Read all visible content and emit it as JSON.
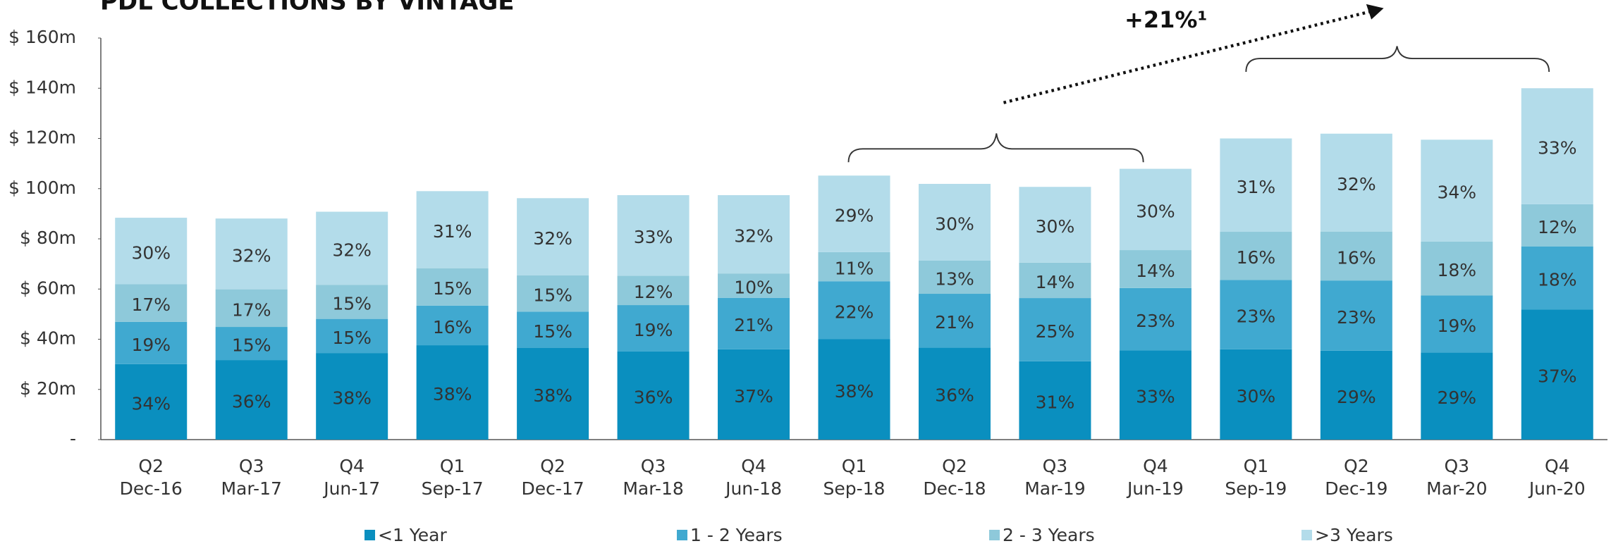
{
  "chart_data": {
    "type": "stacked_bar",
    "title": "PDL COLLECTIONS BY VINTAGE",
    "annotation": "+21%¹",
    "quarter_labels": [
      "Q2",
      "Q3",
      "Q4",
      "Q1",
      "Q2",
      "Q3",
      "Q4",
      "Q1",
      "Q2",
      "Q3",
      "Q4",
      "Q1",
      "Q2",
      "Q3",
      "Q4"
    ],
    "categories": [
      "Dec-16",
      "Mar-17",
      "Jun-17",
      "Sep-17",
      "Dec-17",
      "Mar-18",
      "Jun-18",
      "Sep-18",
      "Dec-18",
      "Mar-19",
      "Jun-19",
      "Sep-19",
      "Dec-19",
      "Mar-20",
      "Jun-20"
    ],
    "series": [
      {
        "name": "<1 Year",
        "color": "#0a8fbf",
        "values": [
          30.1,
          31.7,
          34.5,
          37.6,
          36.6,
          35.1,
          36.0,
          40.0,
          36.7,
          31.2,
          35.6,
          36.0,
          35.4,
          34.7,
          51.8
        ],
        "share_labels": [
          "34%",
          "36%",
          "38%",
          "38%",
          "38%",
          "36%",
          "37%",
          "38%",
          "36%",
          "31%",
          "33%",
          "30%",
          "29%",
          "29%",
          "37%"
        ]
      },
      {
        "name": "1 - 2 Years",
        "color": "#40a9d0",
        "values": [
          16.8,
          13.2,
          13.6,
          15.8,
          14.4,
          18.5,
          20.5,
          23.1,
          21.4,
          25.2,
          24.8,
          27.6,
          28.0,
          22.7,
          25.2
        ],
        "share_labels": [
          "19%",
          "15%",
          "15%",
          "16%",
          "15%",
          "19%",
          "21%",
          "22%",
          "21%",
          "25%",
          "23%",
          "23%",
          "23%",
          "19%",
          "18%"
        ]
      },
      {
        "name": "2 - 3 Years",
        "color": "#8ec9da",
        "values": [
          15.0,
          15.0,
          13.6,
          14.9,
          14.4,
          11.7,
          9.7,
          11.6,
          13.2,
          14.1,
          15.1,
          19.2,
          19.5,
          21.5,
          16.8
        ],
        "share_labels": [
          "17%",
          "17%",
          "15%",
          "15%",
          "15%",
          "12%",
          "10%",
          "11%",
          "13%",
          "14%",
          "14%",
          "16%",
          "16%",
          "18%",
          "12%"
        ]
      },
      {
        "name": ">3 Years",
        "color": "#b3dcea",
        "values": [
          26.5,
          28.2,
          29.1,
          30.7,
          30.8,
          32.1,
          31.2,
          30.5,
          30.6,
          30.2,
          32.4,
          37.2,
          39.0,
          40.6,
          46.2
        ],
        "share_labels": [
          "30%",
          "32%",
          "32%",
          "31%",
          "32%",
          "33%",
          "32%",
          "29%",
          "30%",
          "30%",
          "30%",
          "31%",
          "32%",
          "34%",
          "33%"
        ]
      }
    ],
    "ylim": [
      0,
      160
    ],
    "yticks": [
      {
        "value": 0,
        "label": "-"
      },
      {
        "value": 20,
        "label": "$ 20m"
      },
      {
        "value": 40,
        "label": "$ 40m"
      },
      {
        "value": 60,
        "label": "$ 60m"
      },
      {
        "value": 80,
        "label": "$ 80m"
      },
      {
        "value": 100,
        "label": "$ 100m"
      },
      {
        "value": 120,
        "label": "$ 120m"
      },
      {
        "value": 140,
        "label": "$ 140m"
      },
      {
        "value": 160,
        "label": "$ 160m"
      }
    ],
    "grid": false,
    "legend": "bottom"
  }
}
